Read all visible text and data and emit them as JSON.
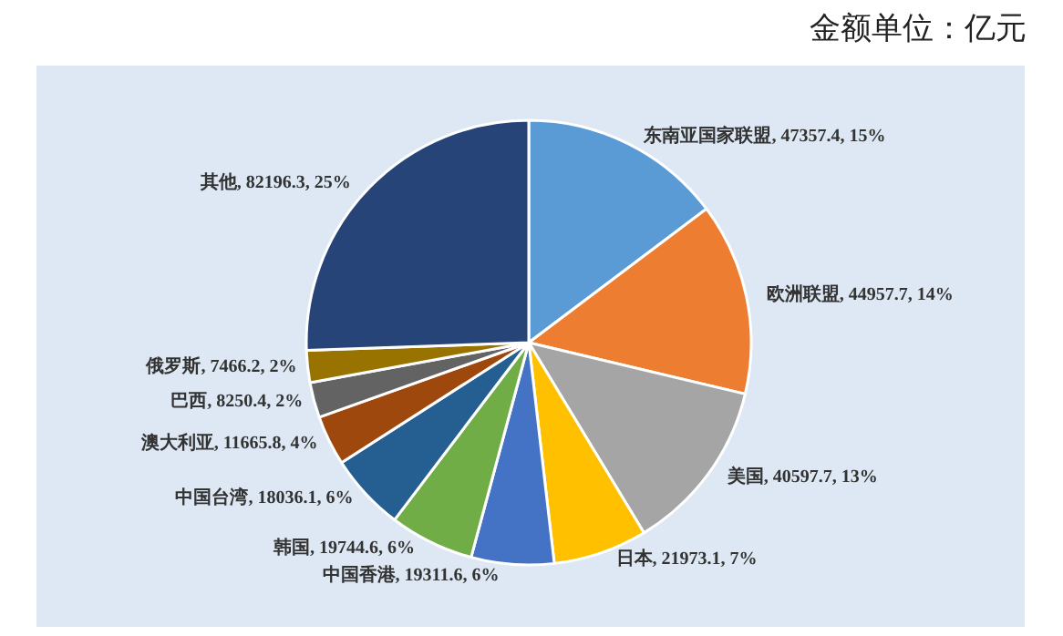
{
  "chart_data": {
    "type": "pie",
    "annotations": [
      "金额单位：亿元"
    ],
    "categories": [
      "东南亚国家联盟",
      "欧洲联盟",
      "美国",
      "日本",
      "中国香港",
      "韩国",
      "中国台湾",
      "澳大利亚",
      "巴西",
      "俄罗斯",
      "其他"
    ],
    "values": [
      47357.4,
      44957.7,
      40597.7,
      21973.1,
      19311.6,
      19744.6,
      18036.1,
      11665.8,
      8250.4,
      7466.2,
      82196.3
    ],
    "value_labels": [
      "47357.4, 15%",
      "44957.7, 14%",
      "40597.7, 13%",
      "21973.1, 7%",
      "19311.6, 6%",
      "19744.6, 6%",
      "18036.1, 6%",
      "11665.8, 4%",
      "8250.4, 2%",
      "7466.2, 2%",
      "82196.3, 25%"
    ],
    "colors": [
      "#5b9bd5",
      "#ed7d31",
      "#a5a5a5",
      "#ffc000",
      "#4472c4",
      "#70ad47",
      "#255e91",
      "#9e480e",
      "#636363",
      "#997300",
      "#264478"
    ],
    "legend": false
  }
}
